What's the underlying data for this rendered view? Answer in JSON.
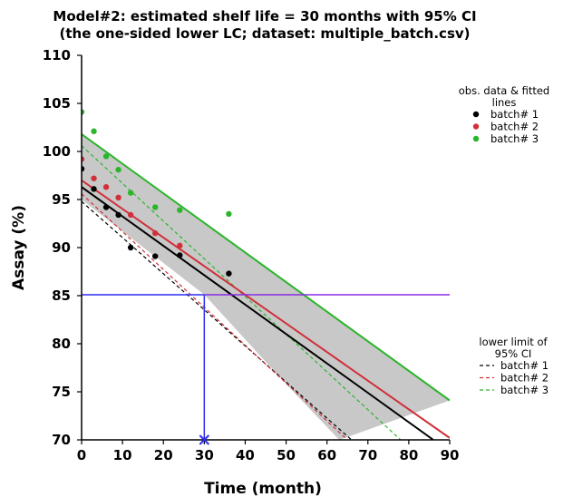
{
  "chart_data": {
    "type": "scatter",
    "title": [
      "Model#2: estimated shelf life = 30 months with 95% CI",
      "(the one-sided lower LC; dataset: multiple_batch.csv)"
    ],
    "xlabel": "Time (month)",
    "ylabel": "Assay (%)",
    "xlim": [
      0,
      90
    ],
    "ylim": [
      70,
      110
    ],
    "xticks": [
      0,
      10,
      20,
      30,
      40,
      50,
      60,
      70,
      80,
      90
    ],
    "yticks": [
      70,
      75,
      80,
      85,
      90,
      95,
      100,
      105,
      110
    ],
    "legend_data": {
      "title": [
        "obs. data & fitted",
        "lines"
      ],
      "placement": "top-right"
    },
    "legend_ci": {
      "title": [
        "lower limit of",
        "95% CI"
      ],
      "placement": "bottom-right"
    },
    "series": [
      {
        "name": "batch# 1",
        "color": "#000000",
        "points": [
          [
            0,
            98.2
          ],
          [
            3,
            96.1
          ],
          [
            6,
            94.2
          ],
          [
            9,
            93.4
          ],
          [
            12,
            90.0
          ],
          [
            18,
            89.1
          ],
          [
            24,
            89.2
          ],
          [
            36,
            87.3
          ]
        ],
        "fit": [
          [
            0,
            96.3
          ],
          [
            86,
            70
          ]
        ],
        "lower_ci": [
          [
            0,
            94.8
          ],
          [
            66,
            70
          ]
        ]
      },
      {
        "name": "batch# 2",
        "color": "#d0303a",
        "points": [
          [
            0,
            99.2
          ],
          [
            3,
            97.2
          ],
          [
            6,
            96.3
          ],
          [
            9,
            95.2
          ],
          [
            12,
            93.4
          ],
          [
            18,
            91.5
          ],
          [
            24,
            90.2
          ]
        ],
        "fit": [
          [
            0,
            97.0
          ],
          [
            90,
            70.2
          ]
        ],
        "lower_ci": [
          [
            0,
            95.6
          ],
          [
            65,
            70
          ]
        ]
      },
      {
        "name": "batch# 3",
        "color": "#2ab52a",
        "points": [
          [
            0,
            104.1
          ],
          [
            3,
            102.1
          ],
          [
            6,
            99.5
          ],
          [
            9,
            98.1
          ],
          [
            12,
            95.7
          ],
          [
            18,
            94.2
          ],
          [
            24,
            93.9
          ],
          [
            36,
            93.5
          ]
        ],
        "fit": [
          [
            0,
            101.8
          ],
          [
            90,
            74.1
          ]
        ],
        "lower_ci": [
          [
            0,
            100.6
          ],
          [
            78,
            70
          ]
        ]
      }
    ],
    "ci_band": {
      "upper": [
        [
          0,
          101.8
        ],
        [
          90,
          74.1
        ]
      ],
      "lower": [
        [
          0,
          95.0
        ],
        [
          30,
          85.1
        ],
        [
          50,
          75.8
        ],
        [
          63,
          70
        ]
      ]
    },
    "spec_limit": 85.1,
    "shelf_life": 30
  },
  "colors": {
    "band": "#c8c8c8",
    "spec_line": "#8a2be2",
    "shelf_line": "#2d2df0"
  }
}
